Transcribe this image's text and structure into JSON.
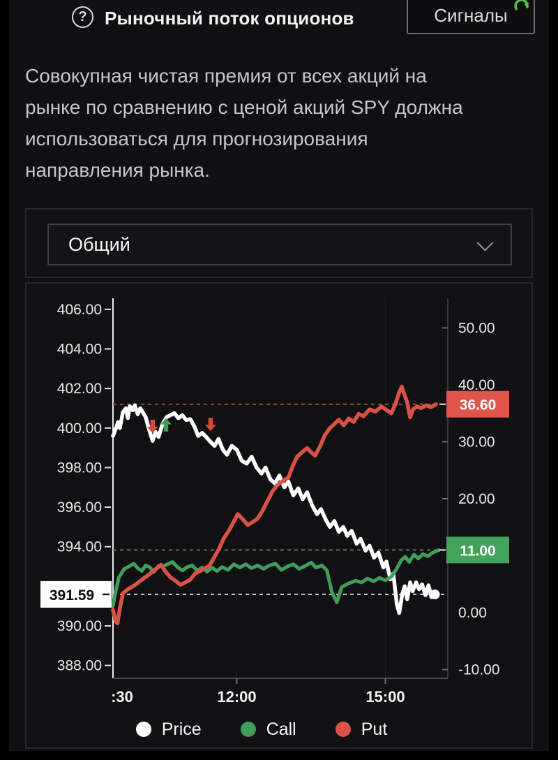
{
  "header": {
    "help_glyph": "?",
    "title": "Рыночный поток опционов",
    "signals_label": "Сигналы"
  },
  "description": {
    "lines": [
      "Совокупная чистая премия от всех акций на",
      "рынке по сравнению с ценой акций SPY должна",
      "использоваться для прогнозирования",
      "направления рынка."
    ]
  },
  "filter": {
    "selected": "Общий"
  },
  "legend": [
    {
      "label": "Price",
      "color": "#ffffff"
    },
    {
      "label": "Call",
      "color": "#3f9e5a"
    },
    {
      "label": "Put",
      "color": "#da5247"
    }
  ],
  "chart_data": {
    "type": "line",
    "x_unit": "hours since 09:30",
    "x_range": [
      0,
      6.76
    ],
    "x_ticks": [
      {
        "t": 0,
        "label": ":30"
      },
      {
        "t": 2.5,
        "label": "12:00"
      },
      {
        "t": 5.5,
        "label": "15:00"
      }
    ],
    "left_axis": {
      "range": [
        387.35,
        406.56
      ],
      "ticks": [
        {
          "v": 406,
          "label": "406.00"
        },
        {
          "v": 404,
          "label": "404.00"
        },
        {
          "v": 402,
          "label": "402.00"
        },
        {
          "v": 400,
          "label": "400.00"
        },
        {
          "v": 398,
          "label": "398.00"
        },
        {
          "v": 396,
          "label": "396.00"
        },
        {
          "v": 394,
          "label": "394.00"
        },
        {
          "v": 390,
          "label": "390.00"
        },
        {
          "v": 388,
          "label": "388.00"
        }
      ]
    },
    "right_axis": {
      "range": [
        -11.53,
        55.21
      ],
      "ticks": [
        {
          "v": 50,
          "label": "50.00",
          "tick": true
        },
        {
          "v": 40,
          "label": "40.00",
          "tick": false
        },
        {
          "v": 30,
          "label": "30.00",
          "tick": true
        },
        {
          "v": 20,
          "label": "20.00",
          "tick": true
        },
        {
          "v": 0,
          "label": "0.00",
          "tick": false
        },
        {
          "v": -10,
          "label": "-10.00",
          "tick": true
        }
      ]
    },
    "current_labels": [
      {
        "series": "Price",
        "value": "391.59",
        "v": 391.59,
        "axis": "left",
        "bg": "#ffffff",
        "fg": "#0a0a0a",
        "dash_color": "#cfcfcf"
      },
      {
        "series": "Put",
        "value": "36.60",
        "v": 36.6,
        "axis": "right",
        "bg": "#e0544a",
        "fg": "#ffffff",
        "dash_color": "#9a5134"
      },
      {
        "series": "Call",
        "value": "11.00",
        "v": 11.0,
        "axis": "right",
        "bg": "#43a35c",
        "fg": "#ffffff",
        "dash_color": "#507d5b"
      }
    ],
    "markers": [
      {
        "t": 0.8,
        "v": 399.75,
        "dir": "down",
        "color": "#d9463c"
      },
      {
        "t": 1.07,
        "v": 400.5,
        "dir": "up",
        "color": "#3fa14f"
      },
      {
        "t": 1.97,
        "v": 399.85,
        "dir": "down",
        "color": "#d9463c"
      }
    ],
    "series": [
      {
        "name": "Price",
        "axis": "left",
        "color": "#ffffff",
        "width": 5.5,
        "points": [
          [
            0,
            399.6
          ],
          [
            0.06,
            400.0
          ],
          [
            0.1,
            400.3
          ],
          [
            0.14,
            400.0
          ],
          [
            0.2,
            400.8
          ],
          [
            0.26,
            401.0
          ],
          [
            0.3,
            400.5
          ],
          [
            0.34,
            401.1
          ],
          [
            0.4,
            400.9
          ],
          [
            0.44,
            401.15
          ],
          [
            0.5,
            400.7
          ],
          [
            0.55,
            401.0
          ],
          [
            0.6,
            400.8
          ],
          [
            0.66,
            400.55
          ],
          [
            0.72,
            400.0
          ],
          [
            0.8,
            399.35
          ],
          [
            0.86,
            399.8
          ],
          [
            0.92,
            399.55
          ],
          [
            1.0,
            400.2
          ],
          [
            1.08,
            400.55
          ],
          [
            1.16,
            400.65
          ],
          [
            1.24,
            400.75
          ],
          [
            1.32,
            400.5
          ],
          [
            1.4,
            400.65
          ],
          [
            1.48,
            400.4
          ],
          [
            1.56,
            400.45
          ],
          [
            1.64,
            400.1
          ],
          [
            1.72,
            399.6
          ],
          [
            1.8,
            399.75
          ],
          [
            1.88,
            399.55
          ],
          [
            1.97,
            399.3
          ],
          [
            2.05,
            399.1
          ],
          [
            2.13,
            399.45
          ],
          [
            2.22,
            398.9
          ],
          [
            2.3,
            398.65
          ],
          [
            2.4,
            399.1
          ],
          [
            2.5,
            398.9
          ],
          [
            2.6,
            398.35
          ],
          [
            2.7,
            398.2
          ],
          [
            2.8,
            398.55
          ],
          [
            2.9,
            398.0
          ],
          [
            3.0,
            397.7
          ],
          [
            3.08,
            398.0
          ],
          [
            3.18,
            397.4
          ],
          [
            3.27,
            397.2
          ],
          [
            3.36,
            397.6
          ],
          [
            3.46,
            397.0
          ],
          [
            3.54,
            397.3
          ],
          [
            3.64,
            396.6
          ],
          [
            3.74,
            396.95
          ],
          [
            3.83,
            396.4
          ],
          [
            3.92,
            396.75
          ],
          [
            4.02,
            396.1
          ],
          [
            4.12,
            395.65
          ],
          [
            4.2,
            395.9
          ],
          [
            4.3,
            395.35
          ],
          [
            4.38,
            395.0
          ],
          [
            4.47,
            395.3
          ],
          [
            4.56,
            394.75
          ],
          [
            4.65,
            395.0
          ],
          [
            4.73,
            394.55
          ],
          [
            4.82,
            394.8
          ],
          [
            4.92,
            394.15
          ],
          [
            5.0,
            394.4
          ],
          [
            5.1,
            393.8
          ],
          [
            5.18,
            394.05
          ],
          [
            5.27,
            393.45
          ],
          [
            5.36,
            393.7
          ],
          [
            5.46,
            392.95
          ],
          [
            5.52,
            393.25
          ],
          [
            5.6,
            392.35
          ],
          [
            5.66,
            392.65
          ],
          [
            5.73,
            391.1
          ],
          [
            5.78,
            390.65
          ],
          [
            5.84,
            391.6
          ],
          [
            5.89,
            392.0
          ],
          [
            5.94,
            391.35
          ],
          [
            6.0,
            392.2
          ],
          [
            6.05,
            391.75
          ],
          [
            6.12,
            392.2
          ],
          [
            6.18,
            391.85
          ],
          [
            6.24,
            392.1
          ],
          [
            6.31,
            391.55
          ],
          [
            6.37,
            392.05
          ],
          [
            6.43,
            391.45
          ],
          [
            6.5,
            391.59
          ]
        ]
      },
      {
        "name": "Call",
        "axis": "right",
        "color": "#3f9e5a",
        "width": 5,
        "points": [
          [
            0,
            1.2
          ],
          [
            0.05,
            3.6
          ],
          [
            0.12,
            6.2
          ],
          [
            0.22,
            7.6
          ],
          [
            0.32,
            8.1
          ],
          [
            0.42,
            8.6
          ],
          [
            0.5,
            7.8
          ],
          [
            0.58,
            7.3
          ],
          [
            0.66,
            8.3
          ],
          [
            0.74,
            8.0
          ],
          [
            0.82,
            7.1
          ],
          [
            0.92,
            8.2
          ],
          [
            1.0,
            8.1
          ],
          [
            1.1,
            8.5
          ],
          [
            1.2,
            8.9
          ],
          [
            1.3,
            8.0
          ],
          [
            1.4,
            7.4
          ],
          [
            1.5,
            8.0
          ],
          [
            1.6,
            8.3
          ],
          [
            1.7,
            7.4
          ],
          [
            1.8,
            7.9
          ],
          [
            1.9,
            7.2
          ],
          [
            2.0,
            7.9
          ],
          [
            2.1,
            7.3
          ],
          [
            2.2,
            8.0
          ],
          [
            2.32,
            7.5
          ],
          [
            2.44,
            8.5
          ],
          [
            2.56,
            7.9
          ],
          [
            2.68,
            8.5
          ],
          [
            2.8,
            7.8
          ],
          [
            2.92,
            8.3
          ],
          [
            3.04,
            7.7
          ],
          [
            3.16,
            8.3
          ],
          [
            3.28,
            8.6
          ],
          [
            3.4,
            7.5
          ],
          [
            3.52,
            8.1
          ],
          [
            3.64,
            8.5
          ],
          [
            3.76,
            7.7
          ],
          [
            3.88,
            8.2
          ],
          [
            4.0,
            8.8
          ],
          [
            4.1,
            7.9
          ],
          [
            4.22,
            8.3
          ],
          [
            4.32,
            7.4
          ],
          [
            4.42,
            3.6
          ],
          [
            4.52,
            1.8
          ],
          [
            4.62,
            4.5
          ],
          [
            4.75,
            5.1
          ],
          [
            4.9,
            5.6
          ],
          [
            5.02,
            5.3
          ],
          [
            5.14,
            6.0
          ],
          [
            5.26,
            5.5
          ],
          [
            5.38,
            6.1
          ],
          [
            5.5,
            5.7
          ],
          [
            5.62,
            6.3
          ],
          [
            5.72,
            7.6
          ],
          [
            5.82,
            9.2
          ],
          [
            5.9,
            9.8
          ],
          [
            5.98,
            8.9
          ],
          [
            6.08,
            10.2
          ],
          [
            6.16,
            9.5
          ],
          [
            6.26,
            10.3
          ],
          [
            6.36,
            9.9
          ],
          [
            6.45,
            10.5
          ],
          [
            6.58,
            11.0
          ]
        ]
      },
      {
        "name": "Put",
        "axis": "right",
        "color": "#da5247",
        "width": 5.5,
        "points": [
          [
            0,
            0.5
          ],
          [
            0.05,
            -1.5
          ],
          [
            0.09,
            -1.9
          ],
          [
            0.14,
            0.8
          ],
          [
            0.2,
            3.4
          ],
          [
            0.3,
            4.1
          ],
          [
            0.4,
            4.6
          ],
          [
            0.5,
            5.2
          ],
          [
            0.6,
            5.9
          ],
          [
            0.7,
            6.5
          ],
          [
            0.8,
            7.2
          ],
          [
            0.9,
            7.9
          ],
          [
            0.97,
            8.4
          ],
          [
            1.06,
            7.2
          ],
          [
            1.16,
            6.2
          ],
          [
            1.26,
            5.6
          ],
          [
            1.36,
            4.9
          ],
          [
            1.46,
            5.3
          ],
          [
            1.56,
            5.8
          ],
          [
            1.66,
            6.9
          ],
          [
            1.76,
            7.3
          ],
          [
            1.86,
            7.8
          ],
          [
            1.95,
            8.3
          ],
          [
            2.05,
            9.8
          ],
          [
            2.14,
            11.2
          ],
          [
            2.24,
            13.1
          ],
          [
            2.34,
            14.4
          ],
          [
            2.44,
            16.0
          ],
          [
            2.52,
            17.3
          ],
          [
            2.62,
            16.4
          ],
          [
            2.72,
            15.4
          ],
          [
            2.82,
            15.9
          ],
          [
            2.92,
            16.5
          ],
          [
            3.02,
            17.9
          ],
          [
            3.12,
            19.6
          ],
          [
            3.22,
            21.3
          ],
          [
            3.32,
            22.4
          ],
          [
            3.44,
            23.2
          ],
          [
            3.54,
            23.7
          ],
          [
            3.64,
            26.0
          ],
          [
            3.72,
            27.4
          ],
          [
            3.82,
            28.2
          ],
          [
            3.92,
            28.9
          ],
          [
            4.02,
            28.0
          ],
          [
            4.08,
            27.6
          ],
          [
            4.18,
            29.2
          ],
          [
            4.28,
            31.2
          ],
          [
            4.38,
            32.4
          ],
          [
            4.48,
            33.2
          ],
          [
            4.56,
            33.9
          ],
          [
            4.66,
            32.9
          ],
          [
            4.76,
            34.1
          ],
          [
            4.86,
            33.5
          ],
          [
            4.96,
            34.9
          ],
          [
            5.06,
            34.5
          ],
          [
            5.18,
            35.7
          ],
          [
            5.3,
            35.3
          ],
          [
            5.42,
            36.2
          ],
          [
            5.52,
            35.6
          ],
          [
            5.62,
            35.0
          ],
          [
            5.7,
            36.6
          ],
          [
            5.78,
            38.7
          ],
          [
            5.83,
            39.7
          ],
          [
            5.88,
            38.4
          ],
          [
            5.94,
            36.9
          ],
          [
            6.0,
            34.3
          ],
          [
            6.06,
            35.7
          ],
          [
            6.14,
            36.2
          ],
          [
            6.22,
            35.9
          ],
          [
            6.32,
            36.4
          ],
          [
            6.42,
            36.1
          ],
          [
            6.52,
            36.6
          ]
        ]
      }
    ]
  }
}
